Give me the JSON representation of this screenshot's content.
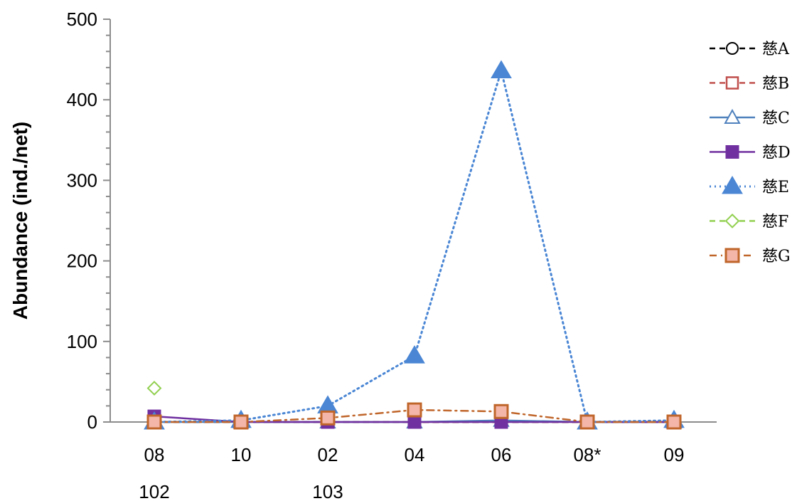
{
  "chart_data": {
    "type": "line",
    "title": "",
    "ylabel": "Abundance (ind./net)",
    "xlabel": "",
    "ylim": [
      0,
      500
    ],
    "y_ticks": [
      0,
      100,
      200,
      300,
      400,
      500
    ],
    "categories": [
      "08",
      "10",
      "02",
      "04",
      "06",
      "08*",
      "09"
    ],
    "year_labels": [
      {
        "text": "102",
        "category_index": 0
      },
      {
        "text": "103",
        "category_index": 2
      }
    ],
    "legend_position": "right",
    "series": [
      {
        "name": "慈A",
        "values": [
          0,
          0,
          0,
          0,
          0,
          0,
          0
        ],
        "color": "#000000",
        "dash": "dashed",
        "marker": "circle-open"
      },
      {
        "name": "慈B",
        "values": [
          0,
          0,
          0,
          0,
          0,
          0,
          0
        ],
        "color": "#C0504D",
        "dash": "dashed",
        "marker": "square-open"
      },
      {
        "name": "慈C",
        "values": [
          0,
          0,
          0,
          0,
          2,
          0,
          0
        ],
        "color": "#4F81BD",
        "dash": "solid",
        "marker": "triangle-open"
      },
      {
        "name": "慈D",
        "values": [
          7,
          0,
          0,
          0,
          0,
          0,
          0
        ],
        "color": "#7030A0",
        "dash": "solid",
        "marker": "square-filled"
      },
      {
        "name": "慈E",
        "values": [
          0,
          2,
          20,
          82,
          436,
          0,
          2
        ],
        "color": "#4A86D4",
        "dash": "dotted",
        "marker": "triangle-filled"
      },
      {
        "name": "慈F",
        "values": [
          42,
          null,
          null,
          null,
          null,
          null,
          null
        ],
        "color": "#92D050",
        "dash": "dashed",
        "marker": "diamond-open"
      },
      {
        "name": "慈G",
        "values": [
          0,
          0,
          5,
          15,
          13,
          0,
          0
        ],
        "color": "#C0662B",
        "dash": "dashdot",
        "marker": "square-pink",
        "fill": "#F4B6A8"
      }
    ]
  }
}
